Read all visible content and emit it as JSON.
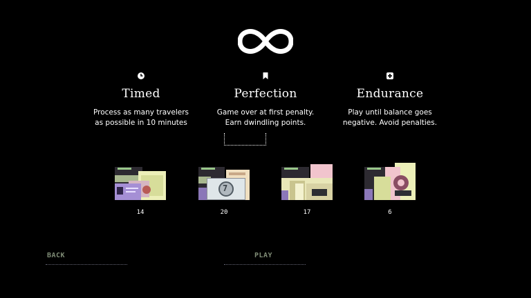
{
  "modes": [
    {
      "id": "timed",
      "icon": "clock-icon",
      "title": "Timed",
      "description": "Process as many travelers\nas possible in 10 minutes"
    },
    {
      "id": "perfection",
      "icon": "bookmark-icon",
      "title": "Perfection",
      "description": "Game over at first penalty.\nEarn dwindling points."
    },
    {
      "id": "endurance",
      "icon": "plus-icon",
      "title": "Endurance",
      "description": "Play until balance goes\nnegative. Avoid penalties."
    }
  ],
  "slots": [
    {
      "count": "14"
    },
    {
      "count": "20"
    },
    {
      "count": "17"
    },
    {
      "count": "6"
    }
  ],
  "buttons": {
    "back": "BACK",
    "play": "PLAY"
  },
  "colors": {
    "background": "#000000",
    "text": "#ffffff",
    "button_text": "#7f8c76"
  }
}
